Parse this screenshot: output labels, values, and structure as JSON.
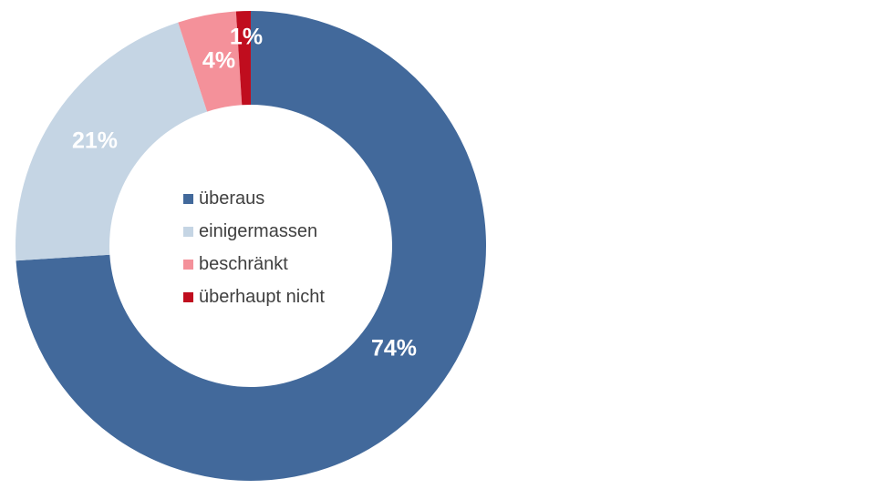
{
  "chart_data": {
    "type": "pie",
    "variant": "donut",
    "title": "",
    "categories": [
      "überaus",
      "einigermassen",
      "beschränkt",
      "überhaupt nicht"
    ],
    "values": [
      74,
      21,
      4,
      1
    ],
    "labels": [
      "74%",
      "21%",
      "4%",
      "1%"
    ],
    "colors": [
      "#42699B",
      "#C5D5E4",
      "#F4919A",
      "#C00D1E"
    ],
    "start": "12 o'clock, clockwise",
    "legend_placement": "center"
  }
}
